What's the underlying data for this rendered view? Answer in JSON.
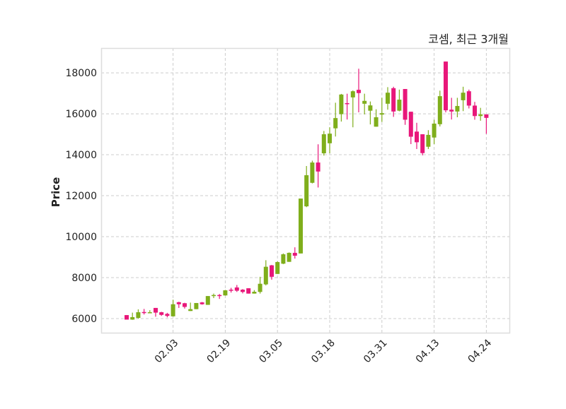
{
  "chart_data": {
    "type": "candlestick",
    "title": "코셈, 최근 3개월",
    "xlabel": "",
    "ylabel": "Price",
    "ylim": [
      5310,
      19210
    ],
    "yticks": [
      6000,
      8000,
      10000,
      12000,
      14000,
      16000,
      18000
    ],
    "xtick_labels": [
      "02.03",
      "02.19",
      "03.05",
      "03.18",
      "03.31",
      "04.13",
      "04.24"
    ],
    "grid": true,
    "colors": {
      "up": "#7fae1b",
      "down": "#e8177a",
      "grid": "#cccccc",
      "frame": "#dddddd"
    },
    "ohlc_columns": [
      "open",
      "high",
      "low",
      "close"
    ],
    "candles": [
      [
        6170,
        6170,
        5950,
        5950
      ],
      [
        5950,
        6290,
        5940,
        6070
      ],
      [
        6030,
        6450,
        6000,
        6310
      ],
      [
        6320,
        6470,
        6200,
        6280
      ],
      [
        6290,
        6410,
        6290,
        6310
      ],
      [
        6520,
        6520,
        6090,
        6290
      ],
      [
        6310,
        6330,
        6130,
        6180
      ],
      [
        6230,
        6280,
        6060,
        6130
      ],
      [
        6110,
        6920,
        6100,
        6700
      ],
      [
        6800,
        6820,
        6520,
        6700
      ],
      [
        6750,
        6770,
        6490,
        6570
      ],
      [
        6370,
        6780,
        6370,
        6460
      ],
      [
        6460,
        6760,
        6460,
        6760
      ],
      [
        6790,
        6810,
        6680,
        6700
      ],
      [
        6670,
        7100,
        6670,
        7100
      ],
      [
        7120,
        7220,
        7000,
        7150
      ],
      [
        7150,
        7200,
        6960,
        7120
      ],
      [
        7130,
        7400,
        7120,
        7380
      ],
      [
        7410,
        7500,
        7270,
        7370
      ],
      [
        7520,
        7640,
        7300,
        7360
      ],
      [
        7410,
        7440,
        7230,
        7300
      ],
      [
        7480,
        7480,
        7220,
        7220
      ],
      [
        7220,
        7390,
        7220,
        7310
      ],
      [
        7300,
        8040,
        7220,
        7700
      ],
      [
        7670,
        8850,
        7620,
        8530
      ],
      [
        8600,
        8620,
        7900,
        8040
      ],
      [
        8180,
        8790,
        8180,
        8760
      ],
      [
        8680,
        9180,
        8660,
        9140
      ],
      [
        8770,
        9230,
        8770,
        9210
      ],
      [
        9210,
        9480,
        8930,
        9070
      ],
      [
        9180,
        11860,
        9180,
        11860
      ],
      [
        11480,
        13450,
        11440,
        13000
      ],
      [
        12630,
        13710,
        12600,
        13620
      ],
      [
        13620,
        14510,
        12400,
        13180
      ],
      [
        14070,
        15160,
        13960,
        15000
      ],
      [
        14560,
        15340,
        14070,
        15030
      ],
      [
        15290,
        16540,
        14890,
        15790
      ],
      [
        15980,
        16970,
        15620,
        16940
      ],
      [
        16520,
        16980,
        15720,
        16470
      ],
      [
        16800,
        17140,
        15340,
        17100
      ],
      [
        17170,
        18200,
        16070,
        17010
      ],
      [
        16490,
        16980,
        15970,
        16630
      ],
      [
        16150,
        16600,
        15480,
        16410
      ],
      [
        15370,
        16220,
        15370,
        15830
      ],
      [
        15960,
        16780,
        15600,
        16030
      ],
      [
        16490,
        17300,
        16200,
        17030
      ],
      [
        17250,
        17320,
        15850,
        16110
      ],
      [
        16150,
        17180,
        16120,
        16690
      ],
      [
        17210,
        17210,
        15460,
        15710
      ],
      [
        16100,
        16100,
        14520,
        14880
      ],
      [
        15130,
        15560,
        14280,
        14610
      ],
      [
        15000,
        15000,
        13970,
        14080
      ],
      [
        14390,
        15200,
        14280,
        14970
      ],
      [
        14840,
        15710,
        14520,
        15520
      ],
      [
        15490,
        17130,
        15380,
        16860
      ],
      [
        18550,
        18550,
        16070,
        16170
      ],
      [
        16200,
        16780,
        15720,
        16110
      ],
      [
        16110,
        16780,
        15830,
        16380
      ],
      [
        16660,
        17320,
        16130,
        17030
      ],
      [
        17100,
        17180,
        16260,
        16400
      ],
      [
        16400,
        16580,
        15710,
        15890
      ],
      [
        15890,
        16290,
        15660,
        15970
      ],
      [
        15970,
        15970,
        15020,
        15800
      ]
    ]
  }
}
